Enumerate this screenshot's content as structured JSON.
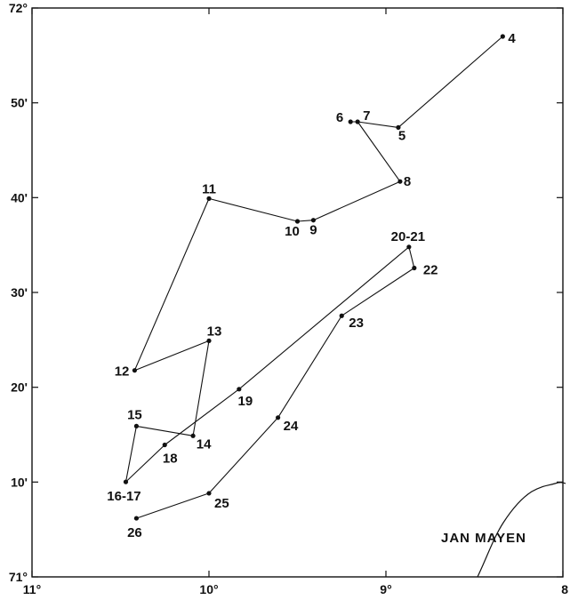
{
  "map": {
    "place_label": "JAN MAYEN",
    "lat_labels": [
      {
        "lat": 72.0,
        "text": "72°"
      },
      {
        "lat": 71.8333,
        "text": "50'"
      },
      {
        "lat": 71.6667,
        "text": "40'"
      },
      {
        "lat": 71.5,
        "text": "30'"
      },
      {
        "lat": 71.3333,
        "text": "20'"
      },
      {
        "lat": 71.1667,
        "text": "10'"
      },
      {
        "lat": 71.0,
        "text": "71°"
      }
    ],
    "lon_labels": [
      {
        "lon": 11,
        "text": "11°"
      },
      {
        "lon": 10,
        "text": "10°"
      },
      {
        "lon": 9,
        "text": "9°"
      },
      {
        "lon": 8,
        "text": "8"
      }
    ]
  },
  "chart_data": {
    "type": "scatter",
    "title": "",
    "xlabel": "",
    "ylabel": "",
    "x_unit": "longitude (degrees W)",
    "y_unit": "latitude (degrees N)",
    "xlim": [
      11,
      8
    ],
    "ylim": [
      71.0,
      72.0
    ],
    "stations": [
      {
        "label": "4",
        "lon": 8.34,
        "lat": 71.95
      },
      {
        "label": "5",
        "lon": 8.93,
        "lat": 71.79
      },
      {
        "label": "6",
        "lon": 9.2,
        "lat": 71.8
      },
      {
        "label": "7",
        "lon": 9.16,
        "lat": 71.8
      },
      {
        "label": "8",
        "lon": 8.92,
        "lat": 71.695
      },
      {
        "label": "9",
        "lon": 9.41,
        "lat": 71.627
      },
      {
        "label": "10",
        "lon": 9.5,
        "lat": 71.625
      },
      {
        "label": "11",
        "lon": 10.0,
        "lat": 71.665
      },
      {
        "label": "12",
        "lon": 10.42,
        "lat": 71.363
      },
      {
        "label": "13",
        "lon": 10.0,
        "lat": 71.415
      },
      {
        "label": "14",
        "lon": 10.09,
        "lat": 71.248
      },
      {
        "label": "15",
        "lon": 10.41,
        "lat": 71.265
      },
      {
        "label": "16-17",
        "lon": 10.47,
        "lat": 71.167
      },
      {
        "label": "18",
        "lon": 10.25,
        "lat": 71.232
      },
      {
        "label": "19",
        "lon": 9.83,
        "lat": 71.33
      },
      {
        "label": "20-21",
        "lon": 8.87,
        "lat": 71.58
      },
      {
        "label": "22",
        "lon": 8.84,
        "lat": 71.543
      },
      {
        "label": "23",
        "lon": 9.25,
        "lat": 71.459
      },
      {
        "label": "24",
        "lon": 9.61,
        "lat": 71.28
      },
      {
        "label": "25",
        "lon": 10.0,
        "lat": 71.147
      },
      {
        "label": "26",
        "lon": 10.41,
        "lat": 71.103
      }
    ],
    "tracks": [
      [
        "4",
        "5",
        "7",
        "6",
        "7",
        "8",
        "9",
        "10",
        "11",
        "12",
        "13",
        "14",
        "15",
        "16-17",
        "18",
        "19",
        "20-21",
        "22",
        "23",
        "24",
        "25",
        "26"
      ]
    ]
  }
}
